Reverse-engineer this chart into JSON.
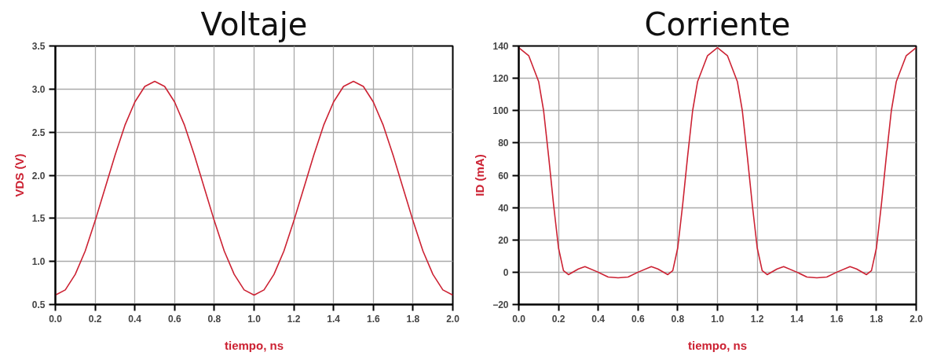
{
  "chart_data": [
    {
      "type": "line",
      "title": "Voltaje",
      "xlabel": "tiempo, ns",
      "ylabel": "VDS (V)",
      "x": [
        0,
        0.05,
        0.1,
        0.15,
        0.2,
        0.25,
        0.3,
        0.35,
        0.4,
        0.45,
        0.5,
        0.55,
        0.6,
        0.65,
        0.7,
        0.75,
        0.8,
        0.85,
        0.9,
        0.95,
        1.0,
        1.05,
        1.1,
        1.15,
        1.2,
        1.25,
        1.3,
        1.35,
        1.4,
        1.45,
        1.5,
        1.55,
        1.6,
        1.65,
        1.7,
        1.75,
        1.8,
        1.85,
        1.9,
        1.95,
        2.0
      ],
      "series": [
        {
          "color": "#cc2233",
          "values": [
            0.61,
            0.67,
            0.85,
            1.12,
            1.47,
            1.85,
            2.23,
            2.58,
            2.85,
            3.03,
            3.09,
            3.03,
            2.85,
            2.58,
            2.23,
            1.85,
            1.47,
            1.12,
            0.85,
            0.67,
            0.61,
            0.67,
            0.85,
            1.12,
            1.47,
            1.85,
            2.23,
            2.58,
            2.85,
            3.03,
            3.09,
            3.03,
            2.85,
            2.58,
            2.23,
            1.85,
            1.47,
            1.12,
            0.85,
            0.67,
            0.61
          ]
        }
      ],
      "xlim": [
        0,
        2
      ],
      "ylim": [
        0.5,
        3.5
      ],
      "xticks": [
        {
          "value": 0,
          "label": "0.0"
        },
        {
          "value": 0.2,
          "label": "0.2"
        },
        {
          "value": 0.4,
          "label": "0.4"
        },
        {
          "value": 0.6,
          "label": "0.6"
        },
        {
          "value": 0.8,
          "label": "0.8"
        },
        {
          "value": 1,
          "label": "1.0"
        },
        {
          "value": 1.2,
          "label": "1.2"
        },
        {
          "value": 1.4,
          "label": "1.4"
        },
        {
          "value": 1.6,
          "label": "1.6"
        },
        {
          "value": 1.8,
          "label": "1.8"
        },
        {
          "value": 2,
          "label": "2.0"
        }
      ],
      "yticks": [
        0.5,
        {
          "value": 1,
          "label": "1.0"
        },
        1.5,
        {
          "value": 2,
          "label": "2.0"
        },
        2.5,
        {
          "value": 3,
          "label": "3.0"
        },
        3.5
      ],
      "grid": true,
      "marker": "none",
      "line_style": "solid"
    },
    {
      "type": "line",
      "title": "Corriente",
      "xlabel": "tiempo, ns",
      "ylabel": "ID (mA)",
      "x": [
        0,
        0.05,
        0.1,
        0.125,
        0.15,
        0.175,
        0.2,
        0.225,
        0.25,
        0.3,
        0.333,
        0.4,
        0.45,
        0.5,
        0.55,
        0.6,
        0.667,
        0.7,
        0.75,
        0.775,
        0.8,
        0.825,
        0.85,
        0.875,
        0.9,
        0.95,
        1.0,
        1.05,
        1.1,
        1.125,
        1.15,
        1.175,
        1.2,
        1.225,
        1.25,
        1.3,
        1.333,
        1.4,
        1.45,
        1.5,
        1.55,
        1.6,
        1.667,
        1.7,
        1.75,
        1.775,
        1.8,
        1.825,
        1.85,
        1.875,
        1.9,
        1.95,
        2.0
      ],
      "series": [
        {
          "color": "#cc2233",
          "values": [
            139,
            134,
            118,
            100,
            72,
            42,
            15,
            1,
            -1.5,
            2,
            3.5,
            0,
            -3,
            -3.5,
            -3,
            0,
            3.5,
            2,
            -1.5,
            1,
            15,
            42,
            72,
            100,
            118,
            134,
            139,
            134,
            118,
            100,
            72,
            42,
            15,
            1,
            -1.5,
            2,
            3.5,
            0,
            -3,
            -3.5,
            -3,
            0,
            3.5,
            2,
            -1.5,
            1,
            15,
            42,
            72,
            100,
            118,
            134,
            139
          ]
        }
      ],
      "xlim": [
        0,
        2
      ],
      "ylim": [
        -20,
        140
      ],
      "xticks": [
        {
          "value": 0,
          "label": "0.0"
        },
        {
          "value": 0.2,
          "label": "0.2"
        },
        {
          "value": 0.4,
          "label": "0.4"
        },
        {
          "value": 0.6,
          "label": "0.6"
        },
        {
          "value": 0.8,
          "label": "0.8"
        },
        {
          "value": 1,
          "label": "1.0"
        },
        {
          "value": 1.2,
          "label": "1.2"
        },
        {
          "value": 1.4,
          "label": "1.4"
        },
        {
          "value": 1.6,
          "label": "1.6"
        },
        {
          "value": 1.8,
          "label": "1.8"
        },
        {
          "value": 2,
          "label": "2.0"
        }
      ],
      "yticks": [
        -20,
        0,
        20,
        40,
        60,
        80,
        100,
        120,
        140
      ],
      "grid": true,
      "marker": "none",
      "line_style": "solid"
    }
  ]
}
